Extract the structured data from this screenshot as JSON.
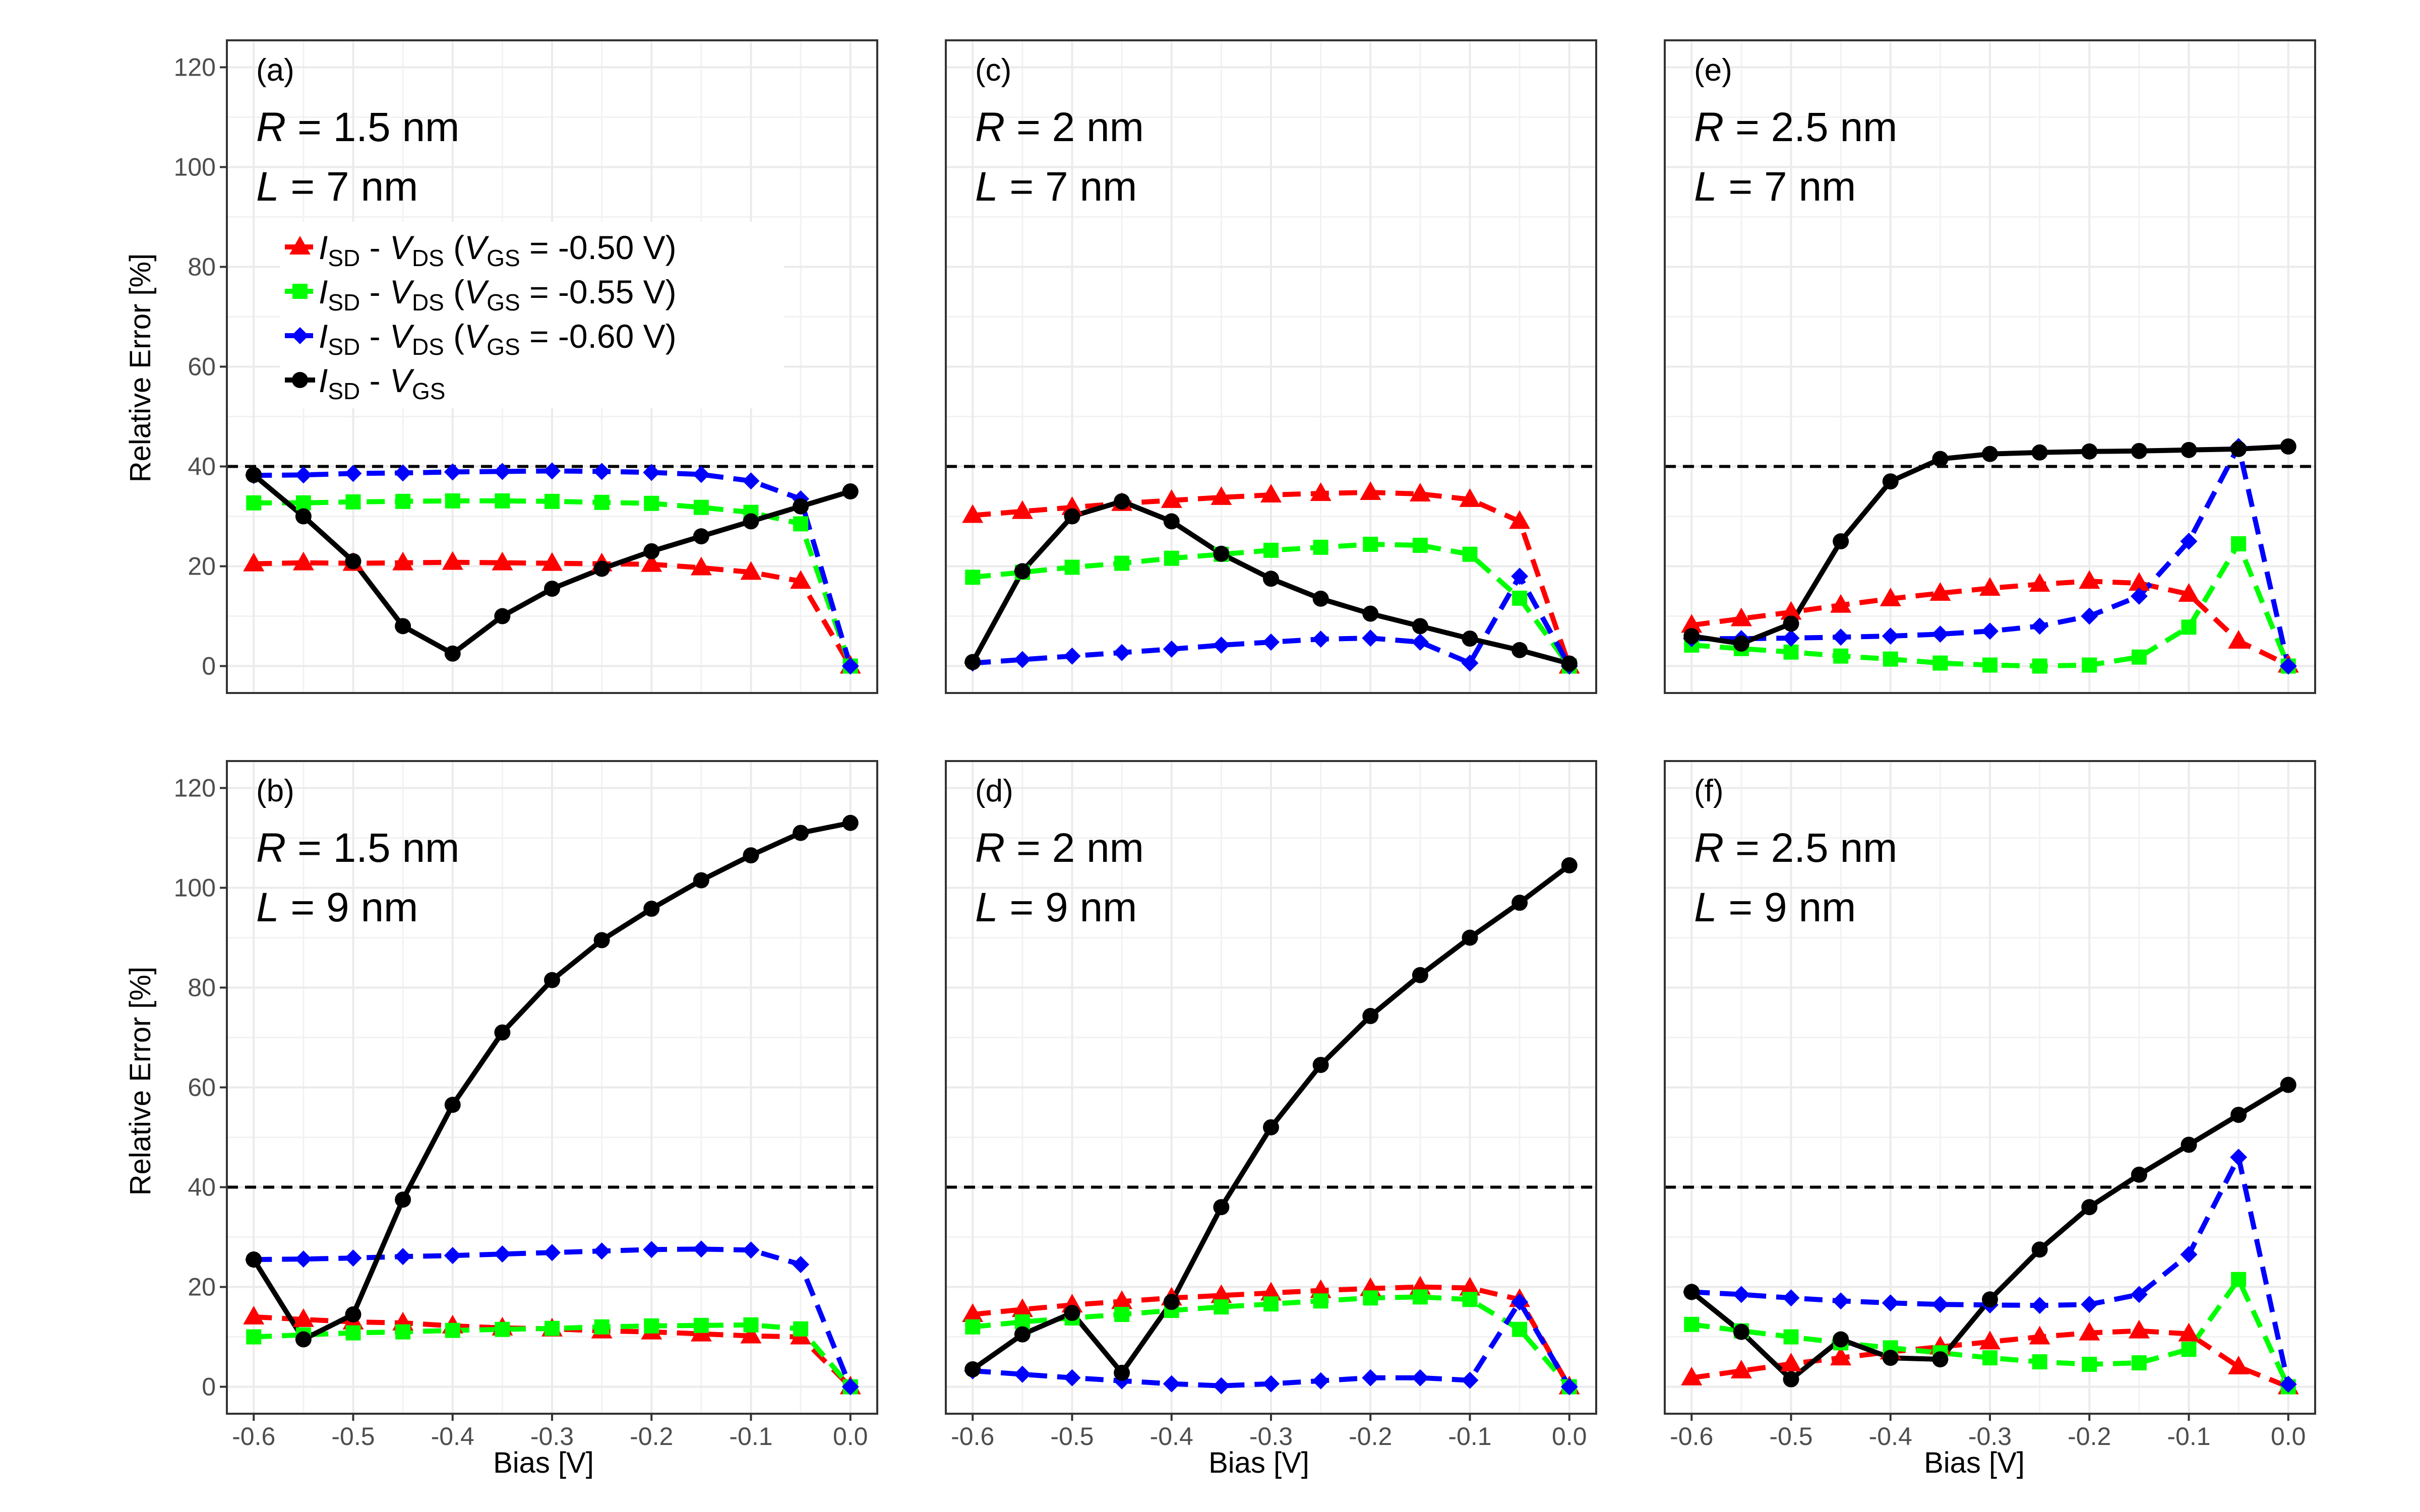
{
  "axis": {
    "xlabel": "Bias [V]",
    "ylabel": "Relative Error [%]",
    "xticks": [
      "-0.6",
      "-0.5",
      "-0.4",
      "-0.3",
      "-0.2",
      "-0.1",
      "0.0"
    ],
    "yticks": [
      "0",
      "20",
      "40",
      "60",
      "80",
      "100",
      "120"
    ]
  },
  "legend": {
    "items": [
      {
        "key": "vgs050",
        "I": "I",
        "Isub": "SD",
        "dash": " - ",
        "V": "V",
        "Vsub": "DS",
        "cond_open": "  (",
        "cV": "V",
        "cVsub": "GS",
        "cond_close": " = -0.50 V)"
      },
      {
        "key": "vgs055",
        "I": "I",
        "Isub": "SD",
        "dash": " - ",
        "V": "V",
        "Vsub": "DS",
        "cond_open": "  (",
        "cV": "V",
        "cVsub": "GS",
        "cond_close": " = -0.55 V)"
      },
      {
        "key": "vgs060",
        "I": "I",
        "Isub": "SD",
        "dash": " - ",
        "V": "V",
        "Vsub": "DS",
        "cond_open": "  (",
        "cV": "V",
        "cVsub": "GS",
        "cond_close": " = -0.60 V)"
      },
      {
        "key": "vgs_curve",
        "I": "I",
        "Isub": "SD",
        "dash": " - ",
        "V": "V",
        "Vsub": "GS",
        "cond_open": "",
        "cV": "",
        "cVsub": "",
        "cond_close": ""
      }
    ]
  },
  "series_style": {
    "vgs050": {
      "color": "#ff0000",
      "marker": "triangle",
      "dashed": true
    },
    "vgs055": {
      "color": "#00ff00",
      "marker": "square",
      "dashed": true
    },
    "vgs060": {
      "color": "#0000ff",
      "marker": "diamond",
      "dashed": true
    },
    "vgs_curve": {
      "color": "#000000",
      "marker": "circle",
      "dashed": false
    }
  },
  "chart_data": [
    {
      "type": "line",
      "panel": "(a)",
      "params": {
        "R": "R",
        "R_val": " = 1.5  nm",
        "L": "L",
        "L_val": " = 7  nm"
      },
      "xlim": [
        -0.6,
        0.0
      ],
      "ylim": [
        0,
        120
      ],
      "reference_line": 40,
      "grid": true,
      "x": [
        -0.6,
        -0.55,
        -0.5,
        -0.45,
        -0.4,
        -0.35,
        -0.3,
        -0.25,
        -0.2,
        -0.15,
        -0.1,
        -0.05,
        0.0
      ],
      "series": {
        "vgs050": [
          20.5,
          20.7,
          20.6,
          20.7,
          20.8,
          20.7,
          20.6,
          20.5,
          20.4,
          19.7,
          18.8,
          17.0,
          0
        ],
        "vgs055": [
          32.7,
          32.7,
          32.9,
          33.0,
          33.1,
          33.1,
          33.0,
          32.8,
          32.6,
          31.8,
          30.8,
          28.5,
          0
        ],
        "vgs060": [
          38.2,
          38.3,
          38.6,
          38.7,
          38.9,
          39.0,
          39.1,
          39.0,
          38.8,
          38.4,
          37.1,
          33.5,
          0
        ],
        "vgs_curve": [
          38.3,
          30,
          21,
          8,
          2.5,
          10,
          15.5,
          19.5,
          23,
          26,
          29,
          32,
          35
        ]
      }
    },
    {
      "type": "line",
      "panel": "(c)",
      "params": {
        "R": "R",
        "R_val": " = 2  nm",
        "L": "L",
        "L_val": " = 7  nm"
      },
      "xlim": [
        -0.6,
        0.0
      ],
      "ylim": [
        0,
        120
      ],
      "reference_line": 40,
      "grid": true,
      "x": [
        -0.6,
        -0.55,
        -0.5,
        -0.45,
        -0.4,
        -0.35,
        -0.3,
        -0.25,
        -0.2,
        -0.15,
        -0.1,
        -0.05,
        0.0
      ],
      "series": {
        "vgs050": [
          30.2,
          31.0,
          31.8,
          32.6,
          33.2,
          33.8,
          34.3,
          34.6,
          34.8,
          34.5,
          33.4,
          29.0,
          0
        ],
        "vgs055": [
          17.8,
          18.8,
          19.8,
          20.6,
          21.6,
          22.4,
          23.2,
          23.8,
          24.4,
          24.2,
          22.4,
          13.6,
          0
        ],
        "vgs060": [
          0.6,
          1.3,
          2.0,
          2.7,
          3.4,
          4.2,
          4.8,
          5.4,
          5.6,
          4.8,
          0.6,
          18.0,
          0
        ],
        "vgs_curve": [
          0.8,
          19,
          30,
          33,
          29,
          22.5,
          17.5,
          13.5,
          10.5,
          8,
          5.5,
          3.2,
          0.5
        ]
      }
    },
    {
      "type": "line",
      "panel": "(e)",
      "params": {
        "R": "R",
        "R_val": " = 2.5  nm",
        "L": "L",
        "L_val": " = 7  nm"
      },
      "xlim": [
        -0.6,
        0.0
      ],
      "ylim": [
        0,
        120
      ],
      "reference_line": 40,
      "grid": true,
      "x": [
        -0.6,
        -0.55,
        -0.5,
        -0.45,
        -0.4,
        -0.35,
        -0.3,
        -0.25,
        -0.2,
        -0.15,
        -0.1,
        -0.05,
        0.0
      ],
      "series": {
        "vgs050": [
          8.2,
          9.5,
          10.8,
          12.2,
          13.5,
          14.6,
          15.6,
          16.4,
          17.0,
          16.6,
          14.4,
          5.0,
          0.2
        ],
        "vgs055": [
          4.2,
          3.5,
          2.8,
          2.0,
          1.4,
          0.6,
          0.2,
          0.0,
          0.2,
          1.8,
          7.8,
          24.5,
          0
        ],
        "vgs060": [
          5.5,
          5.5,
          5.6,
          5.8,
          6.0,
          6.4,
          7.0,
          8.0,
          10.0,
          14.0,
          25.0,
          44.0,
          0
        ],
        "vgs_curve": [
          6,
          4.5,
          8.5,
          25,
          37,
          41.5,
          42.5,
          42.8,
          43,
          43.1,
          43.3,
          43.5,
          44
        ]
      }
    },
    {
      "type": "line",
      "panel": "(b)",
      "params": {
        "R": "R",
        "R_val": " = 1.5  nm",
        "L": "L",
        "L_val": " = 9  nm"
      },
      "xlim": [
        -0.6,
        0.0
      ],
      "ylim": [
        0,
        120
      ],
      "reference_line": 40,
      "grid": true,
      "x": [
        -0.6,
        -0.55,
        -0.5,
        -0.45,
        -0.4,
        -0.35,
        -0.3,
        -0.25,
        -0.2,
        -0.15,
        -0.1,
        -0.05,
        0.0
      ],
      "series": {
        "vgs050": [
          14.0,
          13.5,
          13.0,
          12.8,
          12.2,
          11.8,
          11.6,
          11.2,
          11.0,
          10.6,
          10.2,
          10.0,
          0
        ],
        "vgs055": [
          10.0,
          10.4,
          10.8,
          11.0,
          11.3,
          11.5,
          11.7,
          12.0,
          12.2,
          12.3,
          12.4,
          11.6,
          0
        ],
        "vgs060": [
          25.5,
          25.6,
          25.8,
          26.1,
          26.3,
          26.6,
          26.9,
          27.2,
          27.5,
          27.6,
          27.4,
          24.5,
          0
        ],
        "vgs_curve": [
          25.5,
          9.5,
          14.5,
          37.5,
          56.5,
          71,
          81.5,
          89.5,
          95.8,
          101.5,
          106.5,
          111,
          113
        ]
      }
    },
    {
      "type": "line",
      "panel": "(d)",
      "params": {
        "R": "R",
        "R_val": " = 2  nm",
        "L": "L",
        "L_val": " = 9  nm"
      },
      "xlim": [
        -0.6,
        0.0
      ],
      "ylim": [
        0,
        120
      ],
      "reference_line": 40,
      "grid": true,
      "x": [
        -0.6,
        -0.55,
        -0.5,
        -0.45,
        -0.4,
        -0.35,
        -0.3,
        -0.25,
        -0.2,
        -0.15,
        -0.1,
        -0.05,
        0.0
      ],
      "series": {
        "vgs050": [
          14.5,
          15.5,
          16.4,
          17.1,
          17.8,
          18.3,
          18.8,
          19.3,
          19.7,
          20.0,
          19.8,
          17.5,
          0
        ],
        "vgs055": [
          12.0,
          13.0,
          13.8,
          14.5,
          15.3,
          16.0,
          16.6,
          17.2,
          17.8,
          18.0,
          17.5,
          11.5,
          0
        ],
        "vgs060": [
          3.2,
          2.5,
          1.8,
          1.2,
          0.6,
          0.2,
          0.6,
          1.2,
          1.8,
          1.8,
          1.3,
          17.0,
          0
        ],
        "vgs_curve": [
          3.5,
          10.5,
          14.8,
          2.8,
          17,
          36,
          52,
          64.5,
          74.3,
          82.5,
          90,
          97,
          104.5
        ]
      }
    },
    {
      "type": "line",
      "panel": "(f)",
      "params": {
        "R": "R",
        "R_val": " = 2.5  nm",
        "L": "L",
        "L_val": " = 9  nm"
      },
      "xlim": [
        -0.6,
        0.0
      ],
      "ylim": [
        0,
        120
      ],
      "reference_line": 40,
      "grid": true,
      "x": [
        -0.6,
        -0.55,
        -0.5,
        -0.45,
        -0.4,
        -0.35,
        -0.3,
        -0.25,
        -0.2,
        -0.15,
        -0.1,
        -0.05,
        0.0
      ],
      "series": {
        "vgs050": [
          1.8,
          3.2,
          4.6,
          5.8,
          7.0,
          8.0,
          9.0,
          10.0,
          10.8,
          11.2,
          10.6,
          4.0,
          0
        ],
        "vgs055": [
          12.5,
          11.2,
          10.0,
          8.8,
          7.8,
          6.8,
          5.8,
          5.0,
          4.5,
          4.8,
          7.5,
          21.5,
          0
        ],
        "vgs060": [
          19.0,
          18.5,
          17.8,
          17.2,
          16.8,
          16.5,
          16.4,
          16.3,
          16.5,
          18.5,
          26.5,
          46.0,
          0.5
        ],
        "vgs_curve": [
          19,
          11,
          1.5,
          9.5,
          5.8,
          5.5,
          17.5,
          27.5,
          36,
          42.5,
          48.5,
          54.5,
          60.5
        ]
      }
    }
  ]
}
